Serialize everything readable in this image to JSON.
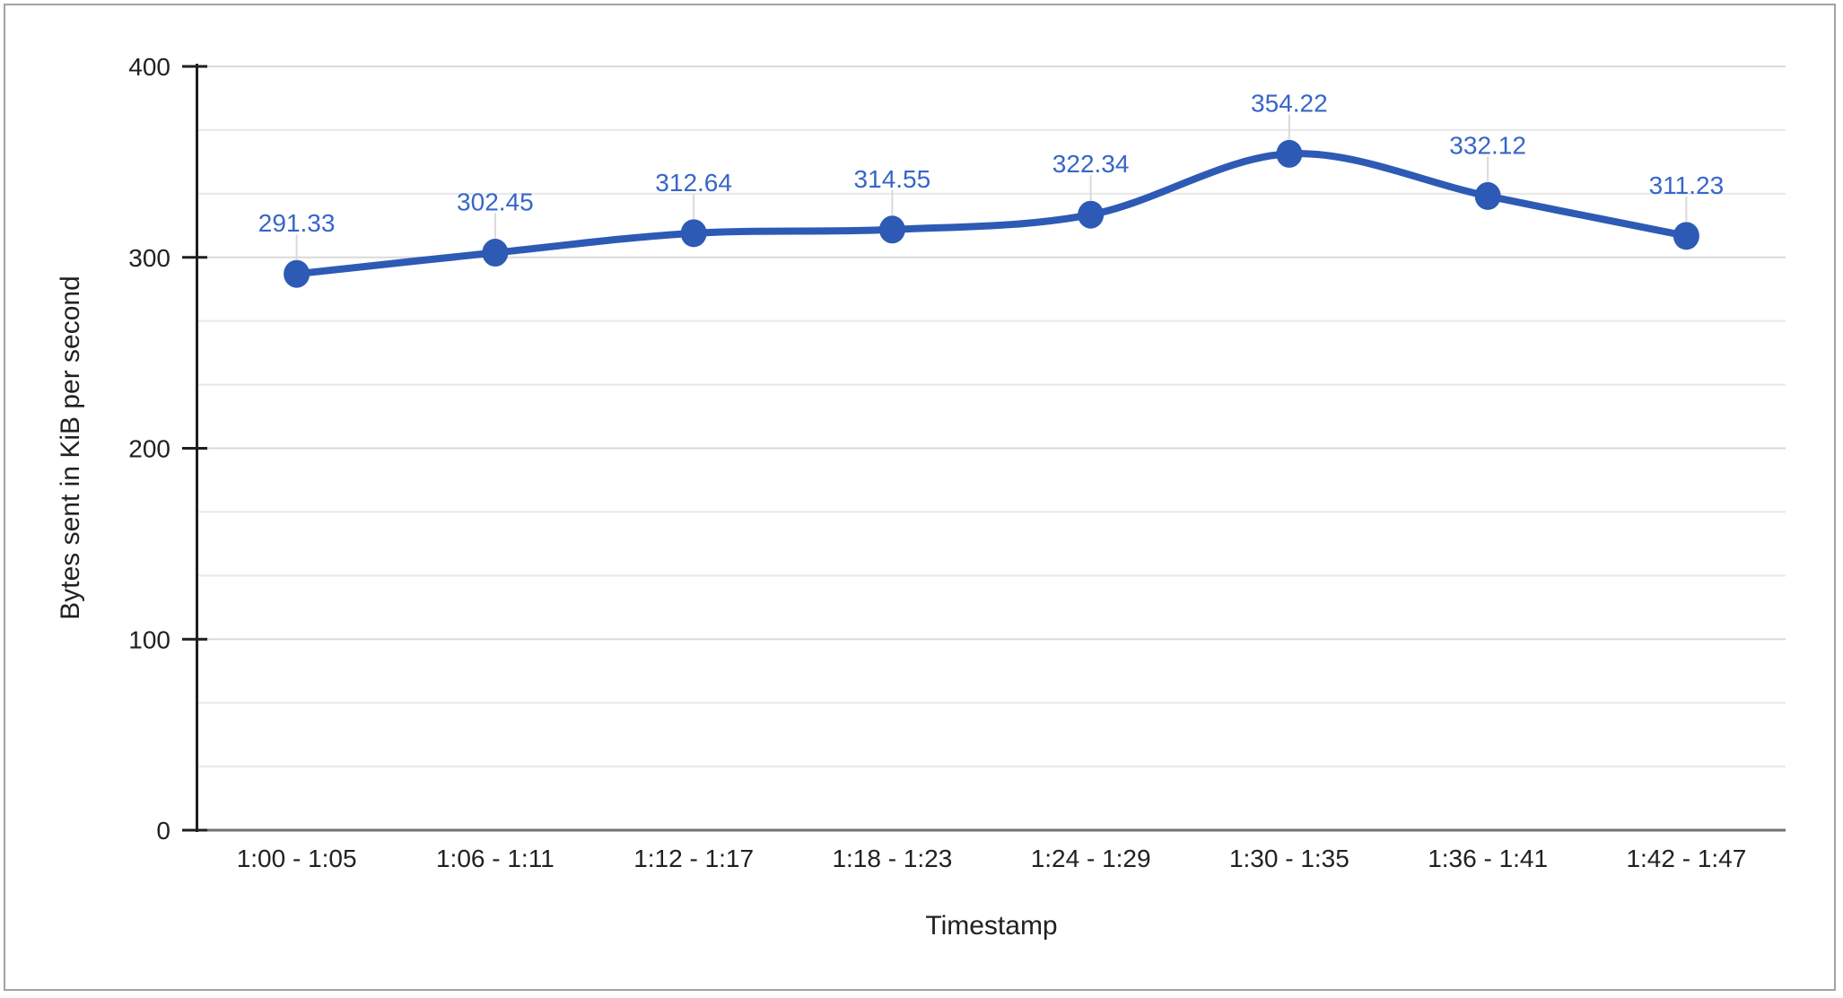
{
  "chart_data": {
    "type": "line",
    "title": "",
    "xlabel": "Timestamp",
    "ylabel": "Bytes sent in KiB per second",
    "categories": [
      "1:00 - 1:05",
      "1:06 - 1:11",
      "1:12 - 1:17",
      "1:18 - 1:23",
      "1:24 - 1:29",
      "1:30 - 1:35",
      "1:36 - 1:41",
      "1:42 - 1:47"
    ],
    "values": [
      291.33,
      302.45,
      312.64,
      314.55,
      322.34,
      354.22,
      332.12,
      311.23
    ],
    "data_labels": [
      "291.33",
      "302.45",
      "312.64",
      "314.55",
      "322.34",
      "354.22",
      "332.12",
      "311.23"
    ],
    "ylim": [
      0,
      400
    ],
    "yticks": [
      0,
      100,
      200,
      300,
      400
    ],
    "y_minor_divisions": 3,
    "grid": true,
    "legend": "none",
    "smooth": true,
    "point_markers": true,
    "colors": {
      "series": "#2d5ab4",
      "data_label": "#3766c8",
      "axis_text": "#212121",
      "axis_line": "#1f1f1f",
      "gridline_minor": "#e8e8e8",
      "gridline_major": "#dadada",
      "baseline": "#717171",
      "callout": "#d9d9d9",
      "frame_border": "#a2a2a2",
      "background": "#ffffff"
    }
  }
}
